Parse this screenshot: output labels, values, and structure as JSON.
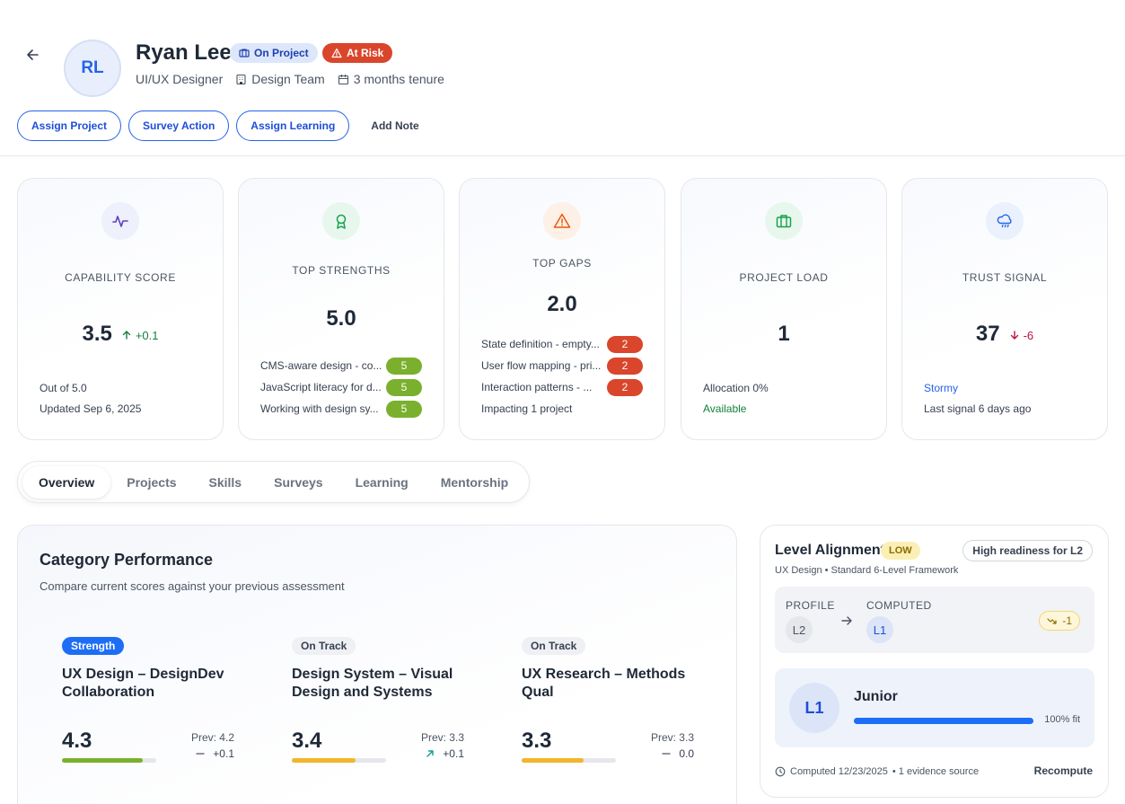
{
  "header": {
    "back_icon": "arrow-left-icon",
    "avatar_initials": "RL",
    "name": "Ryan Lee",
    "badges": {
      "on_project": "On Project",
      "at_risk": "At Risk"
    },
    "role": "UI/UX Designer",
    "team": "Design Team",
    "tenure": "3 months tenure",
    "colors": {
      "accent": "#2563eb",
      "risk": "#d9462b"
    }
  },
  "actions": {
    "assign_project": "Assign Project",
    "survey_action": "Survey Action",
    "assign_learning": "Assign Learning",
    "add_note": "Add Note"
  },
  "kpis": {
    "capability": {
      "label": "CAPABILITY SCORE",
      "value": "3.5",
      "delta": "+0.1",
      "line1": "Out of 5.0",
      "line2": "Updated Sep 6, 2025",
      "icon": "activity-icon"
    },
    "strengths": {
      "label": "TOP STRENGTHS",
      "value": "5.0",
      "icon": "award-icon",
      "items": [
        {
          "text": "CMS-aware design - co...",
          "score": "5"
        },
        {
          "text": "JavaScript literacy for d...",
          "score": "5"
        },
        {
          "text": "Working with design sy...",
          "score": "5"
        }
      ]
    },
    "gaps": {
      "label": "TOP GAPS",
      "value": "2.0",
      "icon": "warning-icon",
      "footer": "Impacting 1 project",
      "items": [
        {
          "text": "State definition - empty...",
          "score": "2"
        },
        {
          "text": "User flow mapping - pri...",
          "score": "2"
        },
        {
          "text": "Interaction patterns - ...",
          "score": "2"
        }
      ]
    },
    "project_load": {
      "label": "PROJECT LOAD",
      "value": "1",
      "line1": "Allocation 0%",
      "line2": "Available",
      "icon": "briefcase-icon"
    },
    "trust": {
      "label": "TRUST SIGNAL",
      "value": "37",
      "delta": "-6",
      "line1": "Stormy",
      "line2": "Last signal 6 days ago",
      "icon": "cloud-rain-icon"
    }
  },
  "tabs": [
    "Overview",
    "Projects",
    "Skills",
    "Surveys",
    "Learning",
    "Mentorship"
  ],
  "category_performance": {
    "title": "Category Performance",
    "subtitle": "Compare current scores against your previous assessment",
    "items": [
      {
        "tag": "Strength",
        "name": "UX Design – DesignDev Collaboration",
        "score": "4.3",
        "prev": "Prev: 4.2",
        "delta": "+0.1",
        "trend": "flat",
        "fill": 0.86,
        "color": "#7ab02d"
      },
      {
        "tag": "On Track",
        "name": "Design System – Visual Design and Systems",
        "score": "3.4",
        "prev": "Prev: 3.3",
        "delta": "+0.1",
        "trend": "up",
        "fill": 0.68,
        "color": "#f2b52c"
      },
      {
        "tag": "On Track",
        "name": "UX Research – Methods Qual",
        "score": "3.3",
        "prev": "Prev: 3.3",
        "delta": "0.0",
        "trend": "flat",
        "fill": 0.66,
        "color": "#f2b52c"
      }
    ]
  },
  "level_alignment": {
    "title": "Level Alignment",
    "status": "LOW",
    "readiness": "High readiness for L2",
    "framework": "UX Design • Standard 6-Level Framework",
    "profile_label": "PROFILE",
    "profile_value": "L2",
    "computed_label": "COMPUTED",
    "computed_value": "L1",
    "difference": "-1",
    "level_code": "L1",
    "level_name": "Junior",
    "fit_text": "100% fit",
    "fit": 1.0,
    "computed_on": "Computed 12/23/2025",
    "evidence": "• 1 evidence source",
    "recompute": "Recompute"
  }
}
